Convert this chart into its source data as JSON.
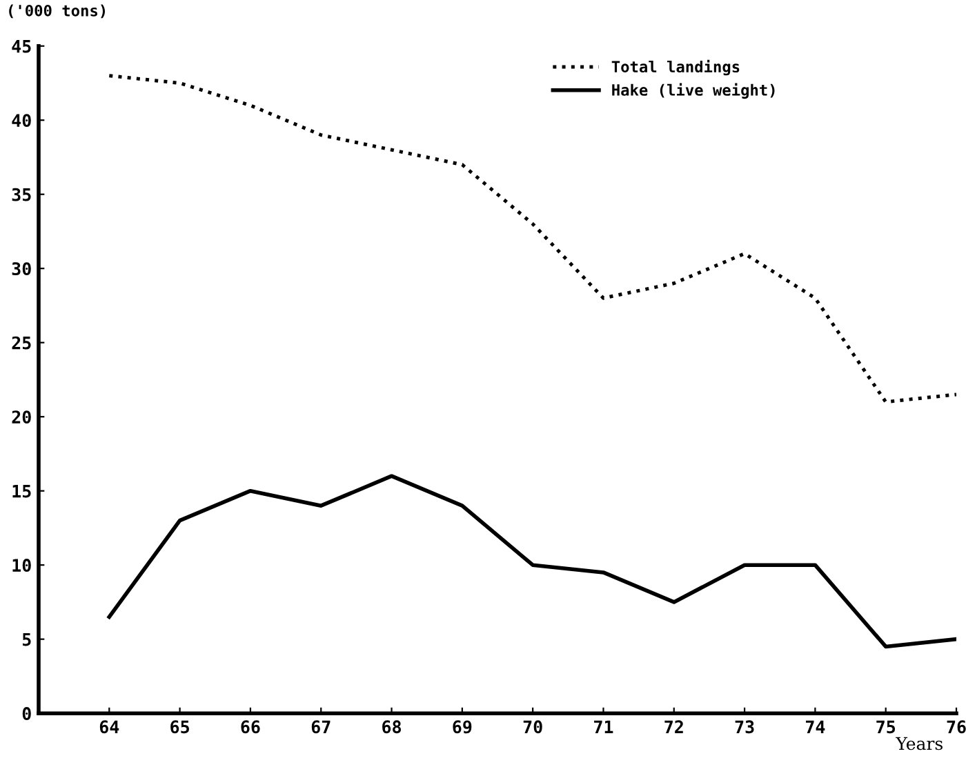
{
  "chart_data": {
    "type": "line",
    "ylabel": "('000 tons)",
    "xlabel": "Years",
    "x": [
      64,
      65,
      66,
      67,
      68,
      69,
      70,
      71,
      72,
      73,
      74,
      75,
      76
    ],
    "xlim": [
      63,
      76
    ],
    "xticks": [
      64,
      65,
      66,
      67,
      68,
      69,
      70,
      71,
      72,
      73,
      74,
      75,
      76
    ],
    "ylim": [
      0,
      45
    ],
    "yticks": [
      0,
      5,
      10,
      15,
      20,
      25,
      30,
      35,
      40,
      45
    ],
    "grid": false,
    "legend": "top right",
    "series": [
      {
        "name": "Total landings",
        "color": "#000000",
        "line_style": "dotted",
        "values": [
          43,
          42.5,
          41,
          39,
          38,
          37,
          33,
          28,
          29,
          31,
          28,
          21,
          21.5
        ]
      },
      {
        "name": "Hake (live weight)",
        "color": "#000000",
        "line_style": "solid",
        "values": [
          6.5,
          13,
          15,
          14,
          16,
          14,
          10,
          9.5,
          7.5,
          10,
          10,
          4.5,
          5
        ]
      }
    ]
  }
}
